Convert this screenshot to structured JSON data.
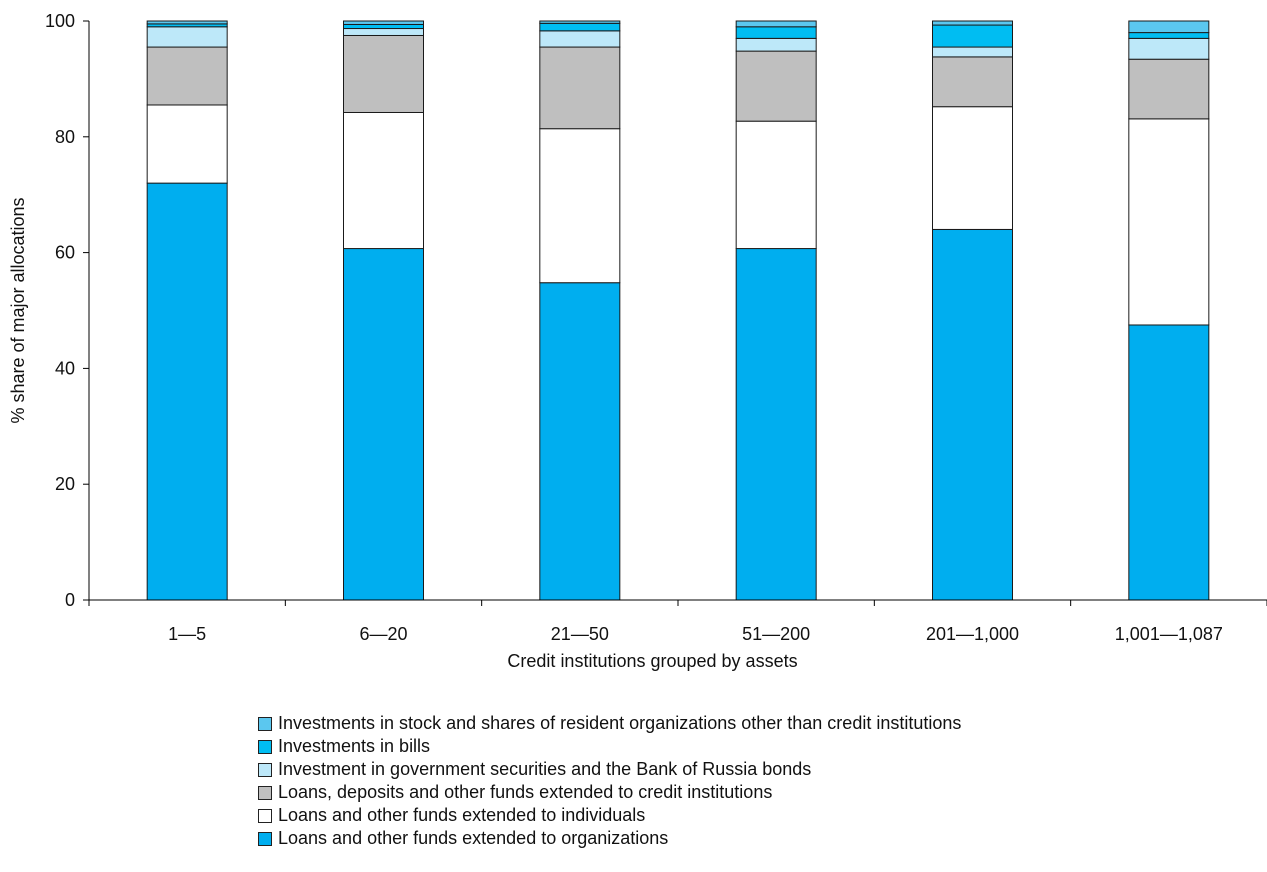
{
  "chart_data": {
    "type": "bar",
    "stacked": true,
    "title": "",
    "xlabel": "Credit institutions grouped by assets",
    "ylabel": "% share of major allocations",
    "ylim": [
      0,
      100
    ],
    "yticks": [
      "0",
      "20",
      "40",
      "60",
      "80",
      "100"
    ],
    "grid": false,
    "legend_position": "bottom",
    "categories": [
      "1—5",
      "6—20",
      "21—50",
      "51—200",
      "201—1,000",
      "1,001—1,087"
    ],
    "series": [
      {
        "name": "Loans and other funds extended to organizations",
        "color": "#00aeef",
        "values": [
          72.0,
          60.7,
          54.8,
          60.7,
          64.0,
          47.5
        ]
      },
      {
        "name": "Loans and other funds extended to individuals",
        "color": "#ffffff",
        "values": [
          13.5,
          23.5,
          26.6,
          22.0,
          21.2,
          35.6
        ]
      },
      {
        "name": "Loans, deposits and other funds extended to credit institutions",
        "color": "#bfbfbf",
        "values": [
          10.0,
          13.3,
          14.1,
          12.1,
          8.6,
          10.3
        ]
      },
      {
        "name": "Investment in government securities and the Bank of Russia bonds",
        "color": "#bde8f9",
        "values": [
          3.5,
          1.2,
          2.8,
          2.2,
          1.7,
          3.6
        ]
      },
      {
        "name": "Investments in bills",
        "color": "#00bdf2",
        "values": [
          0.5,
          0.7,
          1.3,
          2.0,
          3.8,
          1.0
        ]
      },
      {
        "name": "Investments in stock and shares of resident organizations other than credit institutions",
        "color": "#5bc7ef",
        "values": [
          0.5,
          0.6,
          0.4,
          1.0,
          0.7,
          2.0
        ]
      }
    ]
  },
  "legend": [
    {
      "label": "Investments in stock and shares of resident organizations other than credit institutions",
      "color": "#5bc7ef"
    },
    {
      "label": "Investments in bills",
      "color": "#00bdf2"
    },
    {
      "label": "Investment in government securities and the Bank of Russia bonds",
      "color": "#bde8f9"
    },
    {
      "label": "Loans, deposits and other funds extended to credit institutions",
      "color": "#bfbfbf"
    },
    {
      "label": "Loans and other funds extended to individuals",
      "color": "#ffffff"
    },
    {
      "label": "Loans and other funds extended to organizations",
      "color": "#00aeef"
    }
  ]
}
